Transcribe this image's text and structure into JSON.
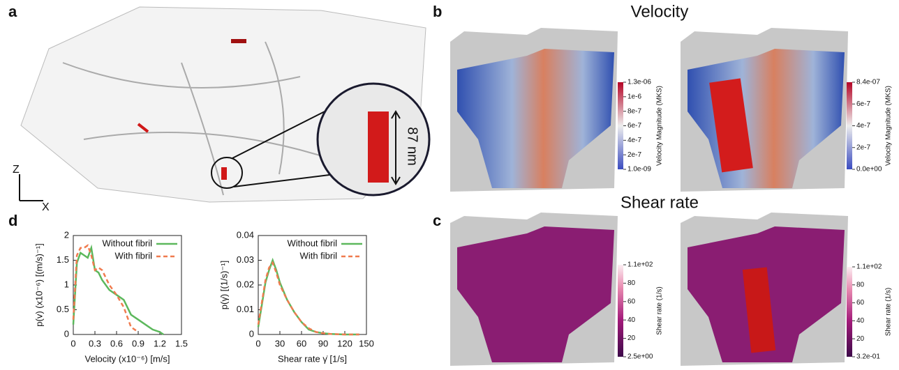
{
  "figure": {
    "panel_labels": [
      "a",
      "b",
      "c",
      "d"
    ],
    "velocity_title": "Velocity",
    "shear_title": "Shear rate",
    "scale_label": "87 nm",
    "axis_z": "Z",
    "axis_x": "X",
    "colorbars": [
      {
        "label": "Velocity Magnitude (MKS)",
        "ticks": [
          "1.3e-06",
          "1e-6",
          "8e-7",
          "6e-7",
          "4e-7",
          "2e-7",
          "1.0e-09"
        ]
      },
      {
        "label": "Velocity Magnitude (MKS)",
        "ticks": [
          "8.4e-07",
          "6e-7",
          "4e-7",
          "2e-7",
          "0.0e+00"
        ]
      },
      {
        "label": "Shear rate (1/s)",
        "ticks": [
          "1.1e+02",
          "80",
          "60",
          "40",
          "20",
          "2.5e+00"
        ]
      },
      {
        "label": "Shear rate (1/s)",
        "ticks": [
          "1.1e+02",
          "80",
          "60",
          "40",
          "20",
          "3.2e-01"
        ]
      }
    ]
  },
  "chart_data": [
    {
      "type": "line",
      "xlabel": "Velocity (x10⁻⁶) [m/s]",
      "ylabel": "p(v) (x10⁻⁶) [(m/s)⁻¹]",
      "x": [
        0,
        0.05,
        0.1,
        0.15,
        0.2,
        0.25,
        0.3,
        0.35,
        0.4,
        0.5,
        0.6,
        0.7,
        0.8,
        0.9,
        1.0,
        1.1,
        1.2,
        1.25
      ],
      "series": [
        {
          "name": "Without fibril",
          "color": "#5cb85c",
          "values": [
            0.2,
            1.45,
            1.65,
            1.6,
            1.55,
            1.75,
            1.3,
            1.25,
            1.1,
            0.9,
            0.8,
            0.7,
            0.4,
            0.3,
            0.2,
            0.1,
            0.05,
            0
          ]
        },
        {
          "name": "With fibril",
          "color": "#f07b4f",
          "values": [
            0.3,
            1.6,
            1.75,
            1.75,
            1.8,
            1.6,
            1.3,
            1.35,
            1.3,
            1.0,
            0.8,
            0.55,
            0.15,
            0.05,
            null,
            null,
            null,
            null
          ]
        }
      ],
      "xlim": [
        0,
        1.5
      ],
      "xticks": [
        0,
        0.3,
        0.6,
        0.9,
        1.2,
        1.5
      ],
      "ylim": [
        0,
        2
      ],
      "yticks": [
        0,
        0.5,
        1,
        1.5,
        2
      ],
      "legend": "top-right"
    },
    {
      "type": "line",
      "xlabel": "Shear rate γ̇ [1/s]",
      "ylabel": "p(γ̇) [(1/s)⁻¹]",
      "x": [
        0,
        5,
        10,
        15,
        20,
        25,
        30,
        40,
        50,
        60,
        70,
        80,
        90,
        100,
        120,
        140
      ],
      "series": [
        {
          "name": "Without fibril",
          "color": "#5cb85c",
          "values": [
            0.003,
            0.012,
            0.021,
            0.026,
            0.03,
            0.026,
            0.021,
            0.014,
            0.009,
            0.005,
            0.002,
            0.001,
            0.0005,
            0.0002,
            0,
            0
          ]
        },
        {
          "name": "With fibril",
          "color": "#f07b4f",
          "values": [
            0.004,
            0.013,
            0.022,
            0.027,
            0.029,
            0.025,
            0.02,
            0.014,
            0.009,
            0.005,
            0.0025,
            0.001,
            0.0005,
            0.0002,
            0,
            0
          ]
        }
      ],
      "xlim": [
        0,
        150
      ],
      "xticks": [
        0,
        30,
        60,
        90,
        120,
        150
      ],
      "ylim": [
        0,
        0.04
      ],
      "yticks": [
        0,
        0.01,
        0.02,
        0.03,
        0.04
      ],
      "legend": "top-right"
    }
  ]
}
